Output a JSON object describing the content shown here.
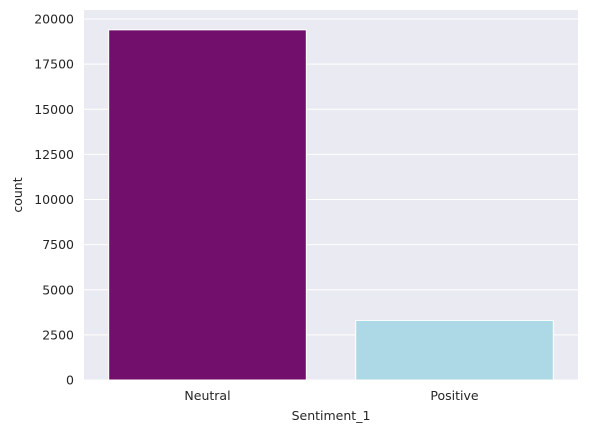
{
  "chart_data": {
    "type": "bar",
    "categories": [
      "Neutral",
      "Positive"
    ],
    "values": [
      19400,
      3300
    ],
    "xlabel": "Sentiment_1",
    "ylabel": "count",
    "ylim": [
      0,
      20500
    ],
    "yticks": [
      0,
      2500,
      5000,
      7500,
      10000,
      12500,
      15000,
      17500,
      20000
    ],
    "bar_colors": [
      "#720e6b",
      "#add8e6"
    ],
    "background_color": "#eaeaf2",
    "grid": true,
    "style": "seaborn-darkgrid"
  }
}
